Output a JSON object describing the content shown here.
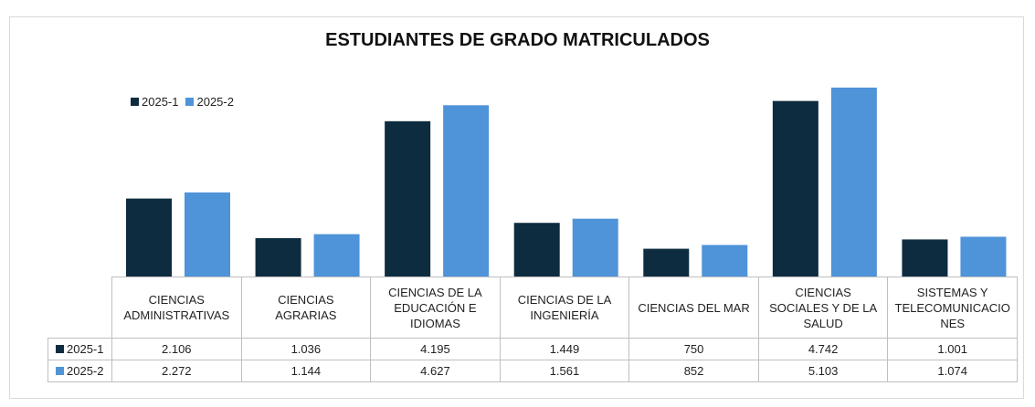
{
  "chart_data": {
    "type": "bar",
    "title": "ESTUDIANTES DE GRADO MATRICULADOS",
    "categories": [
      "CIENCIAS ADMINISTRATIVAS",
      "CIENCIAS AGRARIAS",
      "CIENCIAS DE LA EDUCACIÓN E IDIOMAS",
      "CIENCIAS DE LA INGENIERÍA",
      "CIENCIAS DEL MAR",
      "CIENCIAS SOCIALES Y DE LA SALUD",
      "SISTEMAS Y TELECOMUNICACIONES"
    ],
    "series": [
      {
        "name": "2025-1",
        "color": "#0e2c40",
        "values": [
          2106,
          1036,
          4195,
          1449,
          750,
          4742,
          1001
        ],
        "value_labels": [
          "2.106",
          "1.036",
          "4.195",
          "1.449",
          "750",
          "4.742",
          "1.001"
        ]
      },
      {
        "name": "2025-2",
        "color": "#4f93d9",
        "values": [
          2272,
          1144,
          4627,
          1561,
          852,
          5103,
          1074
        ],
        "value_labels": [
          "2.272",
          "1.144",
          "4.627",
          "1.561",
          "852",
          "5.103",
          "1.074"
        ]
      }
    ],
    "legend": "top-left"
  }
}
